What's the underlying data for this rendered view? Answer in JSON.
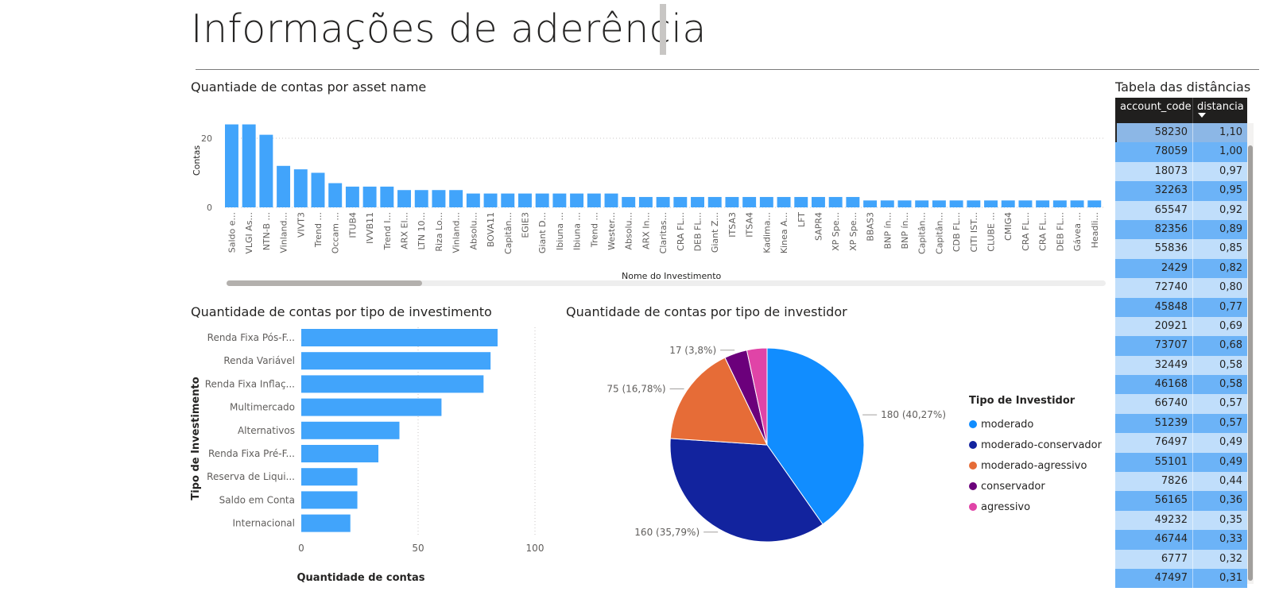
{
  "page": {
    "title": "Informações de aderência"
  },
  "colors": {
    "bar": "#41a4fb",
    "table_header": "#201f1e",
    "row_dark": "#6cb3f7",
    "row_light": "#c0defb"
  },
  "chart_data": [
    {
      "id": "asset-bar",
      "type": "bar",
      "title": "Quantiade de contas por asset name",
      "xlabel": "Nome do Investimento",
      "ylabel": "Contas",
      "ylim": [
        0,
        25
      ],
      "yticks": [
        0,
        20
      ],
      "grid": true,
      "categories": [
        "Saldo e...",
        "VLGI As...",
        "NTN-B ...",
        "Vinland...",
        "VIVT3",
        "Trend ...",
        "Occam ...",
        "ITUB4",
        "IVVB11",
        "Trend I...",
        "ARX El...",
        "LTN 10...",
        "Riza Lo...",
        "Vinland...",
        "Absolu...",
        "BOVA11",
        "Capitân...",
        "EGIE3",
        "Giant D...",
        "Ibiuna ...",
        "Ibiuna ...",
        "Trend ...",
        "Wester...",
        "Absolu...",
        "ARX In...",
        "Claritas...",
        "CRA FL...",
        "DEB FL...",
        "Giant Z...",
        "ITSA3",
        "ITSA4",
        "Kadima...",
        "Kinea A...",
        "LFT",
        "SAPR4",
        "XP Spe...",
        "XP Spe...",
        "BBAS3",
        "BNP ín...",
        "BNP ín...",
        "Capitân...",
        "Capitân...",
        "CDB FL...",
        "CITI IST...",
        "CLUBE ...",
        "CMIG4",
        "CRA FL...",
        "CRA FL...",
        "DEB FL...",
        "Gávea ...",
        "Headli..."
      ],
      "values": [
        24,
        24,
        21,
        12,
        11,
        10,
        7,
        6,
        6,
        6,
        5,
        5,
        5,
        5,
        4,
        4,
        4,
        4,
        4,
        4,
        4,
        4,
        4,
        3,
        3,
        3,
        3,
        3,
        3,
        3,
        3,
        3,
        3,
        3,
        3,
        3,
        3,
        2,
        2,
        2,
        2,
        2,
        2,
        2,
        2,
        2,
        2,
        2,
        2,
        2,
        2
      ]
    },
    {
      "id": "type-bar",
      "type": "bar",
      "orientation": "horizontal",
      "title": "Quantidade de contas por tipo de investimento",
      "xlabel": "Quantidade de contas",
      "ylabel": "Tipo de Investimento",
      "xlim": [
        0,
        100
      ],
      "xticks": [
        0,
        50,
        100
      ],
      "grid": true,
      "categories": [
        "Renda Fixa Pós-F...",
        "Renda Variável",
        "Renda Fixa Inflaç...",
        "Multimercado",
        "Alternativos",
        "Renda Fixa Pré-F...",
        "Reserva de Liqui...",
        "Saldo em Conta",
        "Internacional"
      ],
      "values": [
        84,
        81,
        78,
        60,
        42,
        33,
        24,
        24,
        21
      ]
    },
    {
      "id": "investor-pie",
      "type": "pie",
      "title": "Quantidade de contas por tipo de investidor",
      "legend_title": "Tipo de Investidor",
      "legend_position": "right",
      "slices": [
        {
          "name": "moderado",
          "value": 180,
          "label": "180 (40,27%)",
          "color": "#118dff"
        },
        {
          "name": "moderado-conservador",
          "value": 160,
          "label": "160 (35,79%)",
          "color": "#12239e"
        },
        {
          "name": "moderado-agressivo",
          "value": 75,
          "label": "75 (16,78%)",
          "color": "#e66c37"
        },
        {
          "name": "conservador",
          "value": 17,
          "label": "17 (3,8%)",
          "color": "#6b007b"
        },
        {
          "name": "agressivo",
          "value": 15,
          "label": "",
          "color": "#e044a7"
        }
      ]
    }
  ],
  "table": {
    "title": "Tabela das distâncias",
    "columns": [
      "account_code",
      "distancia"
    ],
    "rows": [
      [
        "58230",
        "1,10"
      ],
      [
        "78059",
        "1,00"
      ],
      [
        "18073",
        "0,97"
      ],
      [
        "32263",
        "0,95"
      ],
      [
        "65547",
        "0,92"
      ],
      [
        "82356",
        "0,89"
      ],
      [
        "55836",
        "0,85"
      ],
      [
        "2429",
        "0,82"
      ],
      [
        "72740",
        "0,80"
      ],
      [
        "45848",
        "0,77"
      ],
      [
        "20921",
        "0,69"
      ],
      [
        "73707",
        "0,68"
      ],
      [
        "32449",
        "0,58"
      ],
      [
        "46168",
        "0,58"
      ],
      [
        "66740",
        "0,57"
      ],
      [
        "51239",
        "0,57"
      ],
      [
        "76497",
        "0,49"
      ],
      [
        "55101",
        "0,49"
      ],
      [
        "7826",
        "0,44"
      ],
      [
        "56165",
        "0,36"
      ],
      [
        "49232",
        "0,35"
      ],
      [
        "46744",
        "0,33"
      ],
      [
        "6777",
        "0,32"
      ],
      [
        "47497",
        "0,31"
      ]
    ]
  }
}
